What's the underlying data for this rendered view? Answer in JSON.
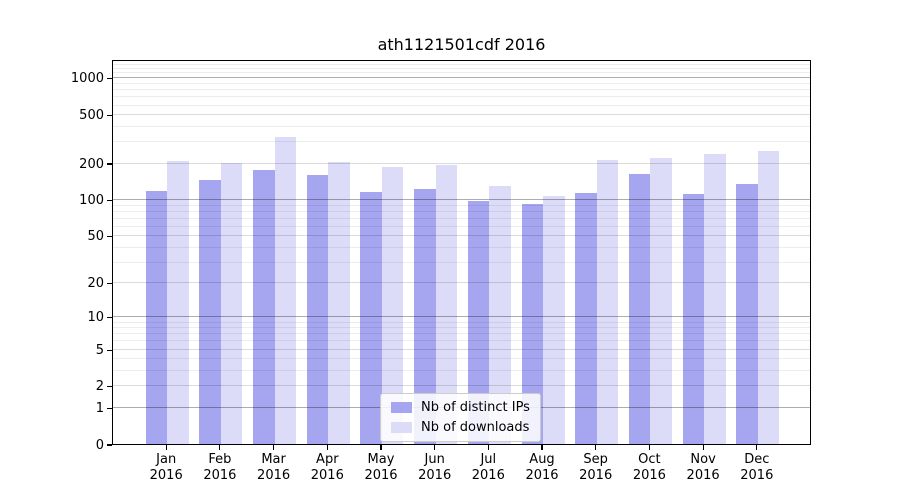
{
  "chart_data": {
    "type": "bar",
    "title": "ath1121501cdf 2016",
    "x_categories": [
      "Jan",
      "Feb",
      "Mar",
      "Apr",
      "May",
      "Jun",
      "Jul",
      "Aug",
      "Sep",
      "Oct",
      "Nov",
      "Dec"
    ],
    "x_year": "2016",
    "y_ticks": [
      0,
      1,
      2,
      5,
      10,
      20,
      50,
      100,
      200,
      500,
      1000
    ],
    "y_scale": "log1p",
    "y_max": 1430,
    "grid": true,
    "legend_position": "bottom-center",
    "series": [
      {
        "name": "Nb of distinct IPs",
        "color": "#a5a5f0",
        "values": [
          118,
          145,
          176,
          158,
          115,
          123,
          98,
          92,
          113,
          162,
          112,
          134
        ]
      },
      {
        "name": "Nb of downloads",
        "color": "#dcdcf8",
        "values": [
          206,
          201,
          330,
          204,
          187,
          193,
          130,
          107,
          211,
          219,
          236,
          251
        ]
      }
    ],
    "axis_color": "#000000",
    "text_color": "#000000"
  }
}
